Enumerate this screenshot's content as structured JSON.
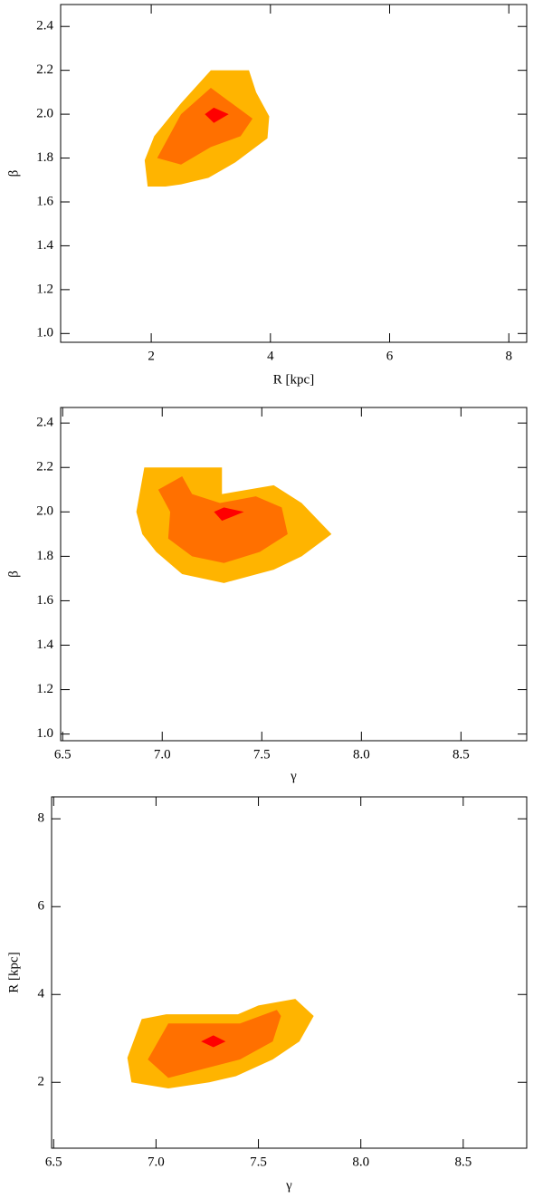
{
  "chart_data": [
    {
      "type": "contour",
      "x_label": "R [kpc]",
      "y_label": "β",
      "xlim": [
        0.48,
        8.3
      ],
      "ylim": [
        0.96,
        2.5
      ],
      "xticks": [
        2,
        4,
        6,
        8
      ],
      "yticks": [
        {
          "value": 1,
          "label": "1.0"
        },
        1.2,
        1.4,
        1.6,
        1.8,
        {
          "value": 2,
          "label": "2.0"
        },
        2.2,
        2.4
      ],
      "series": [
        {
          "color": "#ffb400",
          "x": [
            1.89,
            2.05,
            2.5,
            3.0,
            3.64,
            3.76,
            3.98,
            3.95,
            3.41,
            2.96,
            2.5,
            2.24,
            1.94
          ],
          "values": [
            1.79,
            1.9,
            2.05,
            2.2,
            2.2,
            2.1,
            1.99,
            1.89,
            1.78,
            1.71,
            1.68,
            1.67,
            1.67
          ]
        },
        {
          "color": "#ff7000",
          "x": [
            2.1,
            2.5,
            3.0,
            3.3,
            3.7,
            3.5,
            3.0,
            2.5
          ],
          "values": [
            1.8,
            2.0,
            2.12,
            2.06,
            1.98,
            1.9,
            1.85,
            1.77
          ]
        },
        {
          "color": "#ff0000",
          "x": [
            2.9,
            3.05,
            3.3,
            3.05
          ],
          "values": [
            2.0,
            2.03,
            2.0,
            1.96
          ]
        }
      ]
    },
    {
      "type": "contour",
      "x_label": "γ",
      "y_label": "β",
      "xlim": [
        6.49,
        8.83
      ],
      "ylim": [
        0.97,
        2.47
      ],
      "xticks": [
        6.5,
        {
          "value": 7,
          "label": "7.0"
        },
        7.5,
        {
          "value": 8,
          "label": "8.0"
        },
        8.5
      ],
      "yticks": [
        {
          "value": 1,
          "label": "1.0"
        },
        1.2,
        1.4,
        1.6,
        1.8,
        {
          "value": 2,
          "label": "2.0"
        },
        2.2,
        2.4
      ],
      "series": [
        {
          "color": "#ffb400",
          "x": [
            6.91,
            7.3,
            7.3,
            7.56,
            7.7,
            7.85,
            7.7,
            7.56,
            7.31,
            7.1,
            6.97,
            6.9,
            6.87
          ],
          "values": [
            2.2,
            2.2,
            2.08,
            2.12,
            2.04,
            1.9,
            1.8,
            1.74,
            1.68,
            1.72,
            1.82,
            1.9,
            2.0
          ]
        },
        {
          "color": "#ff7000",
          "x": [
            6.98,
            7.1,
            7.15,
            7.29,
            7.47,
            7.6,
            7.63,
            7.49,
            7.31,
            7.15,
            7.03,
            7.04
          ],
          "values": [
            2.1,
            2.16,
            2.08,
            2.04,
            2.07,
            2.02,
            1.9,
            1.82,
            1.77,
            1.8,
            1.88,
            2.0
          ]
        },
        {
          "color": "#ff0000",
          "x": [
            7.26,
            7.31,
            7.41,
            7.3
          ],
          "values": [
            2.0,
            2.02,
            2.0,
            1.96
          ]
        }
      ]
    },
    {
      "type": "contour",
      "x_label": "γ",
      "y_label": "R [kpc]",
      "xlim": [
        6.49,
        8.81
      ],
      "ylim": [
        0.5,
        8.5
      ],
      "xticks": [
        6.5,
        {
          "value": 7,
          "label": "7.0"
        },
        7.5,
        {
          "value": 8,
          "label": "8.0"
        },
        8.5
      ],
      "yticks": [
        2,
        4,
        6,
        8
      ],
      "series": [
        {
          "color": "#ffb400",
          "x": [
            6.86,
            6.93,
            7.05,
            7.4,
            7.5,
            7.68,
            7.77,
            7.7,
            7.57,
            7.39,
            7.26,
            7.06,
            6.88
          ],
          "values": [
            2.56,
            3.44,
            3.55,
            3.55,
            3.75,
            3.9,
            3.51,
            2.93,
            2.52,
            2.14,
            2.0,
            1.86,
            2.0
          ]
        },
        {
          "color": "#ff7000",
          "x": [
            6.96,
            7.06,
            7.41,
            7.59,
            7.61,
            7.57,
            7.41,
            7.06
          ],
          "values": [
            2.52,
            3.34,
            3.34,
            3.65,
            3.51,
            2.93,
            2.52,
            2.1
          ]
        },
        {
          "color": "#ff0000",
          "x": [
            7.22,
            7.28,
            7.34,
            7.28
          ],
          "values": [
            2.93,
            3.07,
            2.93,
            2.8
          ]
        }
      ]
    }
  ]
}
